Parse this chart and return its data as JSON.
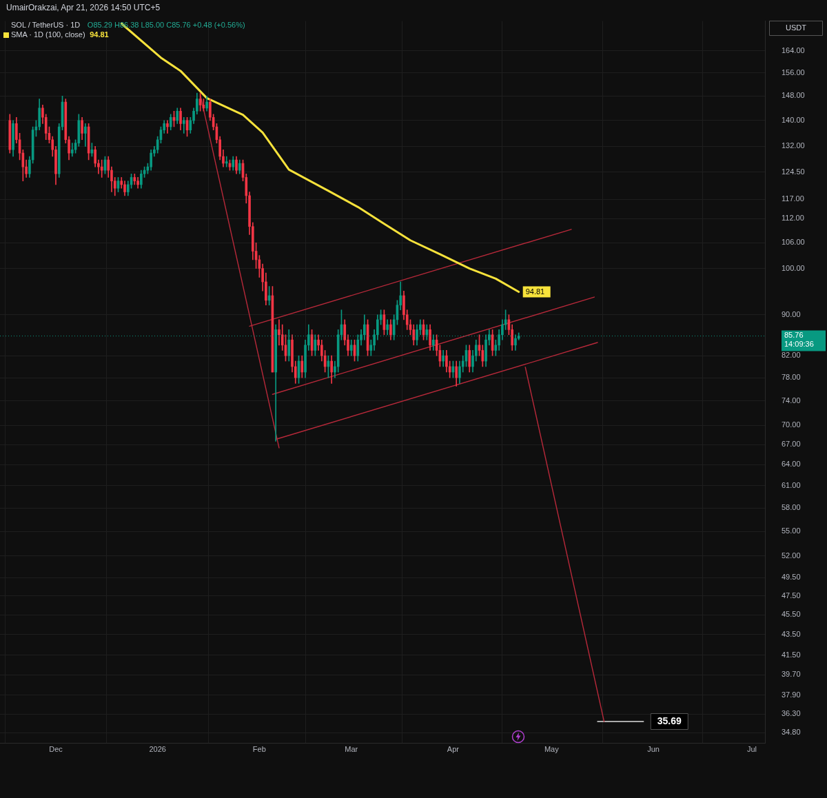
{
  "chart_data": {
    "type": "candlestick",
    "title": "SOL / TetherUS · 1D",
    "subtitle": "O85.29 H86.38 L85.00 C85.76 +0.48 (+0.56%)",
    "ylabel": "USDT",
    "annotations": [
      "UmairOrakzai, Apr 21, 2026 14:50 UTC+5",
      {
        "text": "35.69",
        "x": "2026-05-29",
        "y": 35.69
      }
    ],
    "log": true,
    "grid": true,
    "legend": "top left",
    "xlim": [
      "2025-11-14",
      "2026-07-05"
    ],
    "xticks": [
      {
        "value": "2025-12-01",
        "label": "Dec"
      },
      {
        "value": "2026-01-01",
        "label": "2026"
      },
      {
        "value": "2026-02-01",
        "label": "Feb"
      },
      {
        "value": "2026-03-01",
        "label": "Mar"
      },
      {
        "value": "2026-04-01",
        "label": "Apr"
      },
      {
        "value": "2026-05-01",
        "label": "May"
      },
      {
        "value": "2026-06-01",
        "label": "Jun"
      },
      {
        "value": "2026-07-01",
        "label": "Jul"
      }
    ],
    "ylim": [
      34,
      175.5
    ],
    "yticks": [
      {
        "value": 164,
        "label": "164.00"
      },
      {
        "value": 156,
        "label": "156.00"
      },
      {
        "value": 148,
        "label": "148.00"
      },
      {
        "value": 140,
        "label": "140.00"
      },
      {
        "value": 132,
        "label": "132.00"
      },
      {
        "value": 124.5,
        "label": "124.50"
      },
      {
        "value": 117,
        "label": "117.00"
      },
      {
        "value": 112,
        "label": "112.00"
      },
      {
        "value": 106,
        "label": "106.00"
      },
      {
        "value": 100,
        "label": "100.00"
      },
      {
        "value": 90,
        "label": "90.00"
      },
      {
        "value": 82,
        "label": "82.00"
      },
      {
        "value": 78,
        "label": "78.00"
      },
      {
        "value": 74,
        "label": "74.00"
      },
      {
        "value": 70,
        "label": "70.00"
      },
      {
        "value": 67,
        "label": "67.00"
      },
      {
        "value": 64,
        "label": "64.00"
      },
      {
        "value": 61,
        "label": "61.00"
      },
      {
        "value": 58,
        "label": "58.00"
      },
      {
        "value": 55,
        "label": "55.00"
      },
      {
        "value": 52,
        "label": "52.00"
      },
      {
        "value": 49.5,
        "label": "49.50"
      },
      {
        "value": 47.5,
        "label": "47.50"
      },
      {
        "value": 45.5,
        "label": "45.50"
      },
      {
        "value": 43.5,
        "label": "43.50"
      },
      {
        "value": 41.5,
        "label": "41.50"
      },
      {
        "value": 39.7,
        "label": "39.70"
      },
      {
        "value": 37.9,
        "label": "37.90"
      },
      {
        "value": 36.3,
        "label": "36.30"
      },
      {
        "value": 34.8,
        "label": "34.80"
      }
    ],
    "ref_lines": [
      {
        "axis": "y",
        "value": 85.76,
        "label": "85.76\n14:09:36",
        "color": "#089981",
        "line_style": "dotted"
      }
    ],
    "series": [
      {
        "type": "candlestick",
        "x": [
          "2025-11-17",
          "2025-11-18",
          "2025-11-19",
          "2025-11-20",
          "2025-11-21",
          "2025-11-22",
          "2025-11-23",
          "2025-11-24",
          "2025-11-25",
          "2025-11-26",
          "2025-11-27",
          "2025-11-28",
          "2025-11-29",
          "2025-11-30",
          "2025-12-01",
          "2025-12-02",
          "2025-12-03",
          "2025-12-04",
          "2025-12-05",
          "2025-12-06",
          "2025-12-07",
          "2025-12-08",
          "2025-12-09",
          "2025-12-10",
          "2025-12-11",
          "2025-12-12",
          "2025-12-13",
          "2025-12-14",
          "2025-12-15",
          "2025-12-16",
          "2025-12-17",
          "2025-12-18",
          "2025-12-19",
          "2025-12-20",
          "2025-12-21",
          "2025-12-22",
          "2025-12-23",
          "2025-12-24",
          "2025-12-25",
          "2025-12-26",
          "2025-12-27",
          "2025-12-28",
          "2025-12-29",
          "2025-12-30",
          "2025-12-31",
          "2026-01-01",
          "2026-01-02",
          "2026-01-03",
          "2026-01-04",
          "2026-01-05",
          "2026-01-06",
          "2026-01-07",
          "2026-01-08",
          "2026-01-09",
          "2026-01-10",
          "2026-01-11",
          "2026-01-12",
          "2026-01-13",
          "2026-01-14",
          "2026-01-15",
          "2026-01-16",
          "2026-01-17",
          "2026-01-18",
          "2026-01-19",
          "2026-01-20",
          "2026-01-21",
          "2026-01-22",
          "2026-01-23",
          "2026-01-24",
          "2026-01-25",
          "2026-01-26",
          "2026-01-27",
          "2026-01-28",
          "2026-01-29",
          "2026-01-30",
          "2026-01-31",
          "2026-02-01",
          "2026-02-02",
          "2026-02-03",
          "2026-02-04",
          "2026-02-05",
          "2026-02-06",
          "2026-02-07",
          "2026-02-08",
          "2026-02-09",
          "2026-02-10",
          "2026-02-11",
          "2026-02-12",
          "2026-02-13",
          "2026-02-14",
          "2026-02-15",
          "2026-02-16",
          "2026-02-17",
          "2026-02-18",
          "2026-02-19",
          "2026-02-20",
          "2026-02-21",
          "2026-02-22",
          "2026-02-23",
          "2026-02-24",
          "2026-02-25",
          "2026-02-26",
          "2026-02-27",
          "2026-02-28",
          "2026-03-01",
          "2026-03-02",
          "2026-03-03",
          "2026-03-04",
          "2026-03-05",
          "2026-03-06",
          "2026-03-07",
          "2026-03-08",
          "2026-03-09",
          "2026-03-10",
          "2026-03-11",
          "2026-03-12",
          "2026-03-13",
          "2026-03-14",
          "2026-03-15",
          "2026-03-16",
          "2026-03-17",
          "2026-03-18",
          "2026-03-19",
          "2026-03-20",
          "2026-03-21",
          "2026-03-22",
          "2026-03-23",
          "2026-03-24",
          "2026-03-25",
          "2026-03-26",
          "2026-03-27",
          "2026-03-28",
          "2026-03-29",
          "2026-03-30",
          "2026-03-31",
          "2026-04-01",
          "2026-04-02",
          "2026-04-03",
          "2026-04-04",
          "2026-04-05",
          "2026-04-06",
          "2026-04-07",
          "2026-04-08",
          "2026-04-09",
          "2026-04-10",
          "2026-04-11",
          "2026-04-12",
          "2026-04-13",
          "2026-04-14",
          "2026-04-15",
          "2026-04-16",
          "2026-04-17",
          "2026-04-18",
          "2026-04-19",
          "2026-04-20",
          "2026-04-21"
        ],
        "ohlc": [
          [
            140,
            142,
            130,
            131
          ],
          [
            131,
            140,
            129,
            139
          ],
          [
            139,
            141,
            133,
            134
          ],
          [
            134,
            136,
            128,
            130
          ],
          [
            130,
            131,
            122,
            126
          ],
          [
            126,
            128,
            123,
            124
          ],
          [
            124,
            129,
            123,
            128
          ],
          [
            128,
            138,
            127,
            137
          ],
          [
            137,
            140,
            135,
            138
          ],
          [
            138,
            147,
            137,
            144
          ],
          [
            144,
            145,
            139,
            141
          ],
          [
            141,
            142,
            134,
            136
          ],
          [
            136,
            138,
            133,
            134
          ],
          [
            134,
            135,
            129,
            131
          ],
          [
            131,
            132,
            121,
            124
          ],
          [
            124,
            139,
            123,
            138
          ],
          [
            138,
            148,
            137,
            146
          ],
          [
            146,
            147,
            133,
            134
          ],
          [
            134,
            135,
            128,
            130
          ],
          [
            130,
            133,
            129,
            131
          ],
          [
            131,
            134,
            130,
            133
          ],
          [
            133,
            142,
            132,
            140
          ],
          [
            140,
            141,
            134,
            136
          ],
          [
            136,
            139,
            132,
            138
          ],
          [
            138,
            139,
            128,
            130
          ],
          [
            130,
            133,
            129,
            131
          ],
          [
            131,
            132,
            126,
            127
          ],
          [
            127,
            128,
            124,
            126
          ],
          [
            126,
            128,
            123,
            125
          ],
          [
            125,
            129,
            124,
            128
          ],
          [
            128,
            129,
            123,
            125
          ],
          [
            125,
            126,
            119,
            122
          ],
          [
            122,
            123,
            118,
            120
          ],
          [
            120,
            123,
            119,
            122
          ],
          [
            122,
            123,
            120,
            121
          ],
          [
            121,
            122,
            118,
            119
          ],
          [
            119,
            122,
            118,
            121
          ],
          [
            121,
            124,
            120,
            123
          ],
          [
            123,
            124,
            121,
            122
          ],
          [
            122,
            123,
            120,
            121
          ],
          [
            121,
            125,
            120,
            124
          ],
          [
            124,
            126,
            123,
            125
          ],
          [
            125,
            127,
            124,
            126
          ],
          [
            126,
            131,
            125,
            130
          ],
          [
            130,
            132,
            129,
            131
          ],
          [
            131,
            135,
            130,
            134
          ],
          [
            134,
            138,
            133,
            137
          ],
          [
            137,
            140,
            136,
            139
          ],
          [
            139,
            140,
            136,
            138
          ],
          [
            138,
            142,
            137,
            141
          ],
          [
            141,
            143,
            138,
            140
          ],
          [
            140,
            144,
            139,
            143
          ],
          [
            143,
            144,
            137,
            139
          ],
          [
            139,
            141,
            136,
            140
          ],
          [
            140,
            141,
            135,
            137
          ],
          [
            137,
            141,
            136,
            140
          ],
          [
            140,
            144,
            139,
            143
          ],
          [
            143,
            149,
            142,
            147
          ],
          [
            147,
            149,
            143,
            145
          ],
          [
            145,
            147,
            143,
            144
          ],
          [
            144,
            148,
            143,
            146
          ],
          [
            146,
            147,
            140,
            141
          ],
          [
            141,
            142,
            137,
            138
          ],
          [
            138,
            139,
            133,
            134
          ],
          [
            134,
            135,
            128,
            129
          ],
          [
            129,
            131,
            126,
            127
          ],
          [
            127,
            129,
            126,
            127.5
          ],
          [
            127,
            128,
            125,
            126
          ],
          [
            126,
            129,
            125,
            128
          ],
          [
            128,
            129,
            124,
            125
          ],
          [
            125,
            128,
            124,
            127
          ],
          [
            127,
            128,
            122,
            123
          ],
          [
            123,
            124,
            116,
            118
          ],
          [
            118,
            119,
            108,
            110
          ],
          [
            110,
            111,
            102,
            104
          ],
          [
            104,
            106,
            100,
            102
          ],
          [
            102,
            103,
            98,
            100
          ],
          [
            100,
            101,
            95,
            97
          ],
          [
            97,
            99,
            92,
            93
          ],
          [
            93,
            96,
            92,
            94
          ],
          [
            94,
            96,
            79,
            79
          ],
          [
            79,
            88,
            67.5,
            87
          ],
          [
            87,
            89,
            84,
            86
          ],
          [
            86,
            88,
            83,
            84
          ],
          [
            84,
            86,
            81,
            82
          ],
          [
            82,
            87,
            81,
            85
          ],
          [
            85,
            86,
            79,
            80
          ],
          [
            80,
            81,
            77,
            78
          ],
          [
            78,
            82,
            77,
            81
          ],
          [
            81,
            82,
            78,
            79
          ],
          [
            79,
            85,
            78,
            84
          ],
          [
            84,
            88,
            83,
            86
          ],
          [
            86,
            87,
            82,
            83
          ],
          [
            83,
            86,
            82,
            85
          ],
          [
            85,
            86,
            83,
            84
          ],
          [
            84,
            85,
            81,
            82
          ],
          [
            82,
            83,
            79,
            80
          ],
          [
            80,
            82,
            78,
            81
          ],
          [
            81,
            82,
            77,
            79
          ],
          [
            79,
            81,
            78,
            80
          ],
          [
            80,
            87,
            79,
            86
          ],
          [
            86,
            91,
            85,
            88
          ],
          [
            88,
            89,
            84,
            85
          ],
          [
            85,
            86,
            82,
            83
          ],
          [
            83,
            85,
            82,
            84
          ],
          [
            84,
            85,
            81,
            82
          ],
          [
            82,
            86,
            81,
            85
          ],
          [
            85,
            87,
            84,
            86
          ],
          [
            86,
            90,
            85,
            88
          ],
          [
            88,
            89,
            82,
            83
          ],
          [
            83,
            85,
            82,
            84
          ],
          [
            84,
            87,
            83,
            86
          ],
          [
            86,
            90,
            85,
            89
          ],
          [
            89,
            91,
            88,
            90
          ],
          [
            90,
            91,
            86,
            87
          ],
          [
            87,
            89,
            86,
            88
          ],
          [
            88,
            89,
            85,
            86
          ],
          [
            86,
            90,
            85,
            89
          ],
          [
            89,
            93,
            88,
            92
          ],
          [
            92,
            97,
            91,
            94
          ],
          [
            94,
            95,
            89,
            90
          ],
          [
            90,
            91,
            87,
            88
          ],
          [
            88,
            89,
            86,
            87
          ],
          [
            87,
            88,
            84,
            85
          ],
          [
            85,
            88,
            84,
            87
          ],
          [
            87,
            89,
            86,
            88
          ],
          [
            88,
            89,
            85,
            86
          ],
          [
            86,
            88,
            85,
            87
          ],
          [
            87,
            88,
            83,
            84
          ],
          [
            84,
            86,
            83,
            85
          ],
          [
            85,
            86,
            82,
            83
          ],
          [
            83,
            84,
            80,
            81
          ],
          [
            81,
            83,
            80,
            82
          ],
          [
            82,
            83,
            79,
            80
          ],
          [
            80,
            81,
            78,
            79
          ],
          [
            79,
            81,
            78,
            80
          ],
          [
            80,
            81,
            76.5,
            78
          ],
          [
            78,
            81,
            77,
            80
          ],
          [
            80,
            82,
            79,
            81
          ],
          [
            81,
            84,
            80,
            83
          ],
          [
            83,
            84,
            79,
            80
          ],
          [
            80,
            83,
            79,
            82
          ],
          [
            82,
            85,
            81,
            84
          ],
          [
            84,
            86,
            82,
            83
          ],
          [
            83,
            84,
            80,
            81
          ],
          [
            81,
            86,
            80,
            85
          ],
          [
            85,
            87,
            84,
            86
          ],
          [
            86,
            87,
            82,
            83
          ],
          [
            83,
            85,
            82,
            84
          ],
          [
            84,
            87,
            83,
            86
          ],
          [
            86,
            89,
            85,
            88
          ],
          [
            88,
            91,
            87,
            89
          ],
          [
            89,
            90,
            86,
            87
          ],
          [
            87,
            88,
            83,
            84
          ],
          [
            84,
            86,
            83,
            85.28
          ],
          [
            85.29,
            86.38,
            85.0,
            85.76
          ]
        ],
        "colors": [
          "#f23645",
          "#089981",
          "#f23645",
          "#f23645",
          "#f23645",
          "#f23645",
          "#089981",
          "#089981",
          "#089981",
          "#089981",
          "#f23645",
          "#f23645",
          "#f23645",
          "#f23645",
          "#f23645",
          "#089981",
          "#089981",
          "#f23645",
          "#f23645",
          "#089981",
          "#089981",
          "#089981",
          "#f23645",
          "#089981",
          "#f23645",
          "#089981",
          "#f23645",
          "#f23645",
          "#f23645",
          "#089981",
          "#f23645",
          "#f23645",
          "#f23645",
          "#089981",
          "#f23645",
          "#f23645",
          "#089981",
          "#089981",
          "#f23645",
          "#f23645",
          "#089981",
          "#089981",
          "#089981",
          "#089981",
          "#089981",
          "#089981",
          "#089981",
          "#089981",
          "#f23645",
          "#089981",
          "#f23645",
          "#089981",
          "#f23645",
          "#089981",
          "#f23645",
          "#089981",
          "#089981",
          "#089981",
          "#f23645",
          "#f23645",
          "#089981",
          "#f23645",
          "#f23645",
          "#f23645",
          "#f23645",
          "#f23645",
          "#089981",
          "#f23645",
          "#089981",
          "#f23645",
          "#089981",
          "#f23645",
          "#f23645",
          "#f23645",
          "#f23645",
          "#f23645",
          "#f23645",
          "#f23645",
          "#f23645",
          "#089981",
          "#f23645",
          "#089981",
          "#f23645",
          "#f23645",
          "#f23645",
          "#089981",
          "#f23645",
          "#f23645",
          "#089981",
          "#f23645",
          "#089981",
          "#089981",
          "#f23645",
          "#089981",
          "#f23645",
          "#f23645",
          "#f23645",
          "#089981",
          "#f23645",
          "#089981",
          "#089981",
          "#089981",
          "#f23645",
          "#f23645",
          "#089981",
          "#f23645",
          "#089981",
          "#089981",
          "#089981",
          "#f23645",
          "#089981",
          "#089981",
          "#089981",
          "#089981",
          "#f23645",
          "#089981",
          "#f23645",
          "#089981",
          "#089981",
          "#089981",
          "#f23645",
          "#f23645",
          "#f23645",
          "#f23645",
          "#089981",
          "#089981",
          "#f23645",
          "#089981",
          "#f23645",
          "#089981",
          "#f23645",
          "#f23645",
          "#089981",
          "#f23645",
          "#f23645",
          "#089981",
          "#f23645",
          "#089981",
          "#089981",
          "#089981",
          "#f23645",
          "#089981",
          "#089981",
          "#f23645",
          "#f23645",
          "#089981",
          "#089981",
          "#f23645",
          "#089981",
          "#089981",
          "#089981",
          "#089981",
          "#f23645",
          "#f23645",
          "#089981",
          "#089981"
        ]
      },
      {
        "type": "line",
        "name": "SMA · 1D (100, close)",
        "color": "#f7e23b",
        "x": [
          "2025-12-21",
          "2026-01-02",
          "2026-01-08",
          "2026-01-16",
          "2026-01-27",
          "2026-02-02",
          "2026-02-10",
          "2026-02-22",
          "2026-03-03",
          "2026-03-11",
          "2026-03-19",
          "2026-03-28",
          "2026-04-06",
          "2026-04-14",
          "2026-04-21"
        ],
        "values": [
          174.5,
          161.5,
          156.7,
          147.3,
          141.8,
          136.2,
          125.2,
          119.3,
          115,
          110.7,
          106.6,
          103.3,
          100,
          97.7,
          94.81
        ],
        "value_labels": [
          null,
          null,
          null,
          null,
          null,
          null,
          null,
          null,
          null,
          null,
          null,
          null,
          null,
          null,
          "94.81"
        ]
      },
      {
        "type": "line",
        "color": "#b8293a",
        "x": [
          "2026-01-14",
          "2026-02-07"
        ],
        "values": [
          148.5,
          66.5
        ]
      },
      {
        "type": "line",
        "color": "#b8293a",
        "x": [
          "2026-01-29",
          "2026-05-07"
        ],
        "values": [
          87.7,
          109.3
        ]
      },
      {
        "type": "line",
        "color": "#b8293a",
        "x": [
          "2026-02-05",
          "2026-05-14"
        ],
        "values": [
          75.1,
          93.7
        ]
      },
      {
        "type": "line",
        "color": "#b8293a",
        "x": [
          "2026-02-06",
          "2026-05-15"
        ],
        "values": [
          67.8,
          84.5
        ]
      },
      {
        "type": "line",
        "color": "#b8293a",
        "x": [
          "2026-04-23",
          "2026-05-17"
        ],
        "values": [
          79.9,
          35.69
        ]
      },
      {
        "type": "line",
        "color": "#e0e0e0",
        "x": [
          "2026-05-15",
          "2026-05-29"
        ],
        "values": [
          35.69,
          35.69
        ]
      }
    ]
  }
}
